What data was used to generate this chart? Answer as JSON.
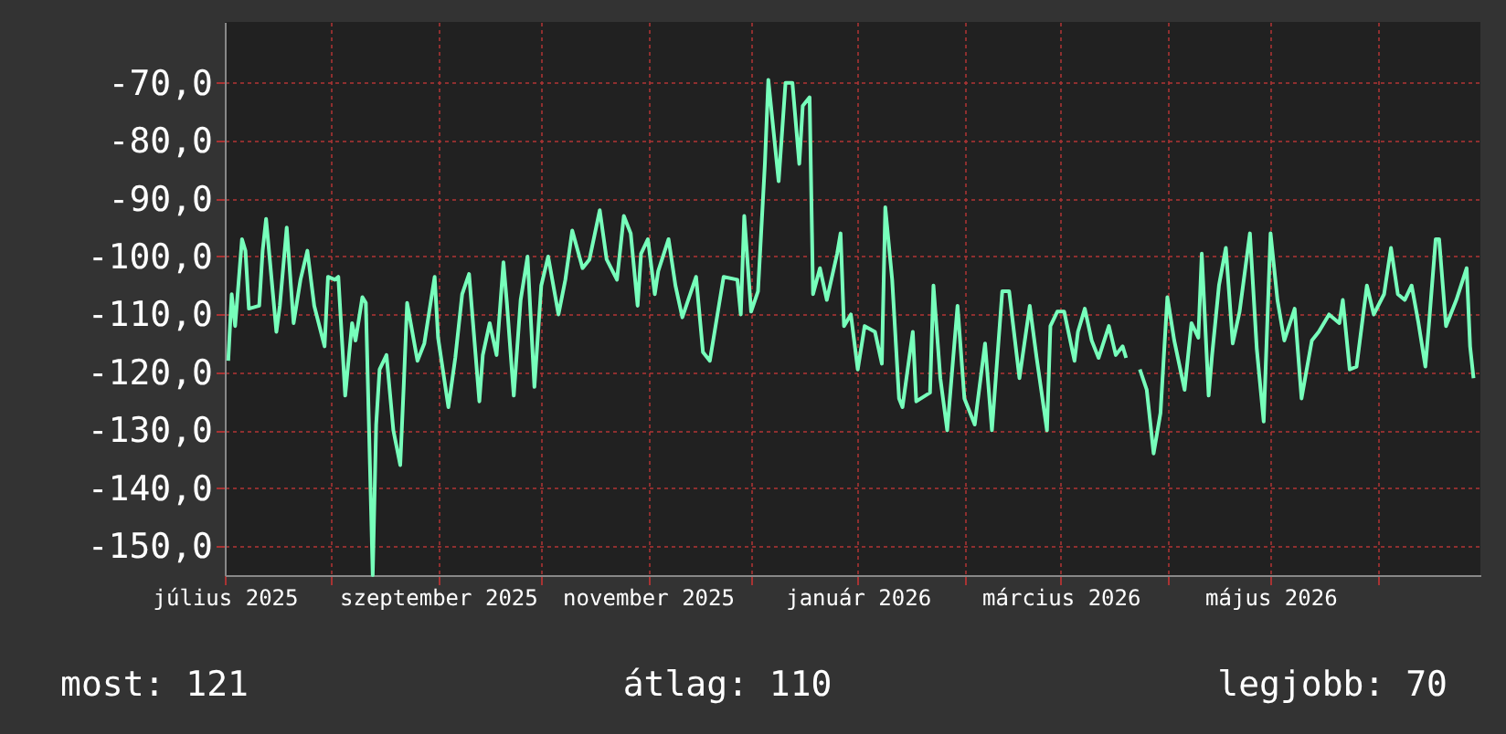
{
  "chart_data": {
    "type": "line",
    "x": [
      "2025-07-02",
      "2025-07-03",
      "2025-07-04",
      "2025-07-06",
      "2025-07-07",
      "2025-07-08",
      "2025-07-11",
      "2025-07-12",
      "2025-07-13",
      "2025-07-14",
      "2025-07-16",
      "2025-07-17",
      "2025-07-19",
      "2025-07-21",
      "2025-07-23",
      "2025-07-25",
      "2025-07-27",
      "2025-07-30",
      "2025-07-31",
      "2025-08-02",
      "2025-08-03",
      "2025-08-05",
      "2025-08-07",
      "2025-08-08",
      "2025-08-10",
      "2025-08-11",
      "2025-08-13",
      "2025-08-14",
      "2025-08-15",
      "2025-08-17",
      "2025-08-19",
      "2025-08-21",
      "2025-08-22",
      "2025-08-23",
      "2025-08-26",
      "2025-08-28",
      "2025-08-31",
      "2025-09-01",
      "2025-09-04",
      "2025-09-06",
      "2025-09-08",
      "2025-09-10",
      "2025-09-13",
      "2025-09-14",
      "2025-09-16",
      "2025-09-18",
      "2025-09-20",
      "2025-09-21",
      "2025-09-23",
      "2025-09-25",
      "2025-09-27",
      "2025-09-29",
      "2025-10-01",
      "2025-10-03",
      "2025-10-06",
      "2025-10-08",
      "2025-10-10",
      "2025-10-13",
      "2025-10-15",
      "2025-10-18",
      "2025-10-20",
      "2025-10-23",
      "2025-10-25",
      "2025-10-27",
      "2025-10-29",
      "2025-10-30",
      "2025-11-01",
      "2025-11-03",
      "2025-11-04",
      "2025-11-07",
      "2025-11-09",
      "2025-11-11",
      "2025-11-15",
      "2025-11-17",
      "2025-11-19",
      "2025-11-23",
      "2025-11-27",
      "2025-11-28",
      "2025-11-29",
      "2025-12-01",
      "2025-12-03",
      "2025-12-05",
      "2025-12-06",
      "2025-12-09",
      "2025-12-11",
      "2025-12-13",
      "2025-12-15",
      "2025-12-16",
      "2025-12-18",
      "2025-12-19",
      "2025-12-21",
      "2025-12-23",
      "2025-12-26",
      "2025-12-27",
      "2025-12-28",
      "2025-12-30",
      "2026-01-01",
      "2026-01-03",
      "2026-01-06",
      "2026-01-08",
      "2026-01-09",
      "2026-01-11",
      "2026-01-13",
      "2026-01-14",
      "2026-01-17",
      "2026-01-18",
      "2026-01-22",
      "2026-01-23",
      "2026-01-25",
      "2026-01-27",
      "2026-01-30",
      "2026-02-01",
      "2026-02-04",
      "2026-02-07",
      "2026-02-09",
      "2026-02-12",
      "2026-02-14",
      "2026-02-17",
      "2026-02-20",
      "2026-02-22",
      "2026-02-25",
      "2026-02-26",
      "2026-02-28",
      "2026-03-02",
      "2026-03-05",
      "2026-03-06",
      "2026-03-08",
      "2026-03-10",
      "2026-03-12",
      "2026-03-15",
      "2026-03-17",
      "2026-03-19",
      "2026-03-20",
      "2026-03-22",
      "2026-03-24",
      "2026-03-26",
      "2026-03-28",
      "2026-03-30",
      "2026-03-31",
      "2026-04-01",
      "2026-04-03",
      "2026-04-06",
      "2026-04-08",
      "2026-04-10",
      "2026-04-11",
      "2026-04-13",
      "2026-04-14",
      "2026-04-16",
      "2026-04-18",
      "2026-04-20",
      "2026-04-22",
      "2026-04-25",
      "2026-04-27",
      "2026-04-29",
      "2026-05-01",
      "2026-05-03",
      "2026-05-05",
      "2026-05-08",
      "2026-05-10",
      "2026-05-13",
      "2026-05-15",
      "2026-05-18",
      "2026-05-21",
      "2026-05-22",
      "2026-05-24",
      "2026-05-26",
      "2026-05-29",
      "2026-05-31",
      "2026-06-03",
      "2026-06-05",
      "2026-06-07",
      "2026-06-09",
      "2026-06-11",
      "2026-06-13",
      "2026-06-15",
      "2026-06-16",
      "2026-06-18",
      "2026-06-19",
      "2026-06-21",
      "2026-06-24",
      "2026-06-27",
      "2026-06-28",
      "2026-06-29"
    ],
    "series": [
      {
        "color": "#77ffbb",
        "values": [
          -118,
          -106.5,
          -112,
          -97,
          -99,
          -109,
          -108.5,
          -99,
          -93.5,
          -100,
          -113,
          -108.5,
          -95,
          -111.5,
          -104,
          -99,
          -108.5,
          -115.5,
          -103.5,
          -104,
          -103.5,
          -124,
          -111.5,
          -114.5,
          -107,
          -108,
          -155,
          -129,
          -119.5,
          -117,
          -130,
          -136,
          -122.5,
          -108,
          -118,
          -115,
          -103.5,
          -114,
          -126,
          -117.5,
          -106.5,
          -103,
          -125,
          -117,
          -111.5,
          -117,
          -101,
          -108,
          -124,
          -107.5,
          -100,
          -122.5,
          -105,
          -100,
          -110,
          -104,
          -95.5,
          -102,
          -100.5,
          -92,
          -100.5,
          -104,
          -93,
          -96,
          -108.5,
          -99.5,
          -97,
          -106.5,
          -102.5,
          -97,
          -105,
          -110.5,
          -103.5,
          -116.5,
          -118,
          -103.5,
          -104,
          -110,
          -93,
          -109.5,
          -106,
          -84,
          -69.5,
          -87,
          -70,
          -70,
          -84,
          -74,
          -72.5,
          -106.5,
          -102,
          -107.5,
          -99.5,
          -96,
          -112,
          -110,
          -119.5,
          -112,
          -113,
          -118.5,
          -91.5,
          -104,
          -124.5,
          -126,
          -113,
          -125,
          -123.5,
          -105,
          -121,
          -130,
          -108.5,
          -124.5,
          -129,
          -115,
          -130,
          -106,
          -106,
          -121,
          -108.5,
          -117.5,
          -130,
          -112,
          -109.5,
          -109.5,
          -118,
          -113,
          -109,
          -114.5,
          -117.5,
          -112,
          -117,
          -115.5,
          -117.5,
          null,
          -119.5,
          -123,
          -134,
          -127,
          -117,
          -107,
          -114.5,
          -123,
          -111.5,
          -114,
          -99.5,
          -124,
          -117,
          -105,
          -98.5,
          -115,
          -109.5,
          -96,
          -116,
          -128.5,
          -96,
          -107.5,
          -114.5,
          -109,
          -124.5,
          -114.5,
          -113,
          -110,
          -111.5,
          -107.5,
          -119.5,
          -119,
          -105,
          -110,
          -106.5,
          -98.5,
          -106.5,
          -107.5,
          -105,
          -111.5,
          -119,
          -112,
          -97,
          -97,
          -112,
          -107.5,
          -102,
          -115.5,
          -121
        ]
      }
    ],
    "xlim": [
      "2025-07-01",
      "2026-07-01"
    ],
    "xticks": [
      {
        "value": "2025-07-01",
        "label": "július 2025"
      },
      {
        "value": "2025-08-01",
        "label": null
      },
      {
        "value": "2025-09-01",
        "label": "szeptember 2025"
      },
      {
        "value": "2025-10-01",
        "label": null
      },
      {
        "value": "2025-11-01",
        "label": "november 2025"
      },
      {
        "value": "2025-12-01",
        "label": null
      },
      {
        "value": "2026-01-01",
        "label": "január 2026"
      },
      {
        "value": "2026-02-01",
        "label": null
      },
      {
        "value": "2026-03-01",
        "label": "március 2026"
      },
      {
        "value": "2026-04-01",
        "label": null
      },
      {
        "value": "2026-05-01",
        "label": "május 2026"
      },
      {
        "value": "2026-06-01",
        "label": null
      }
    ],
    "ylim": [
      -155,
      -59.5
    ],
    "yticks": [
      {
        "value": -70,
        "label": "-70,0"
      },
      {
        "value": -80,
        "label": "-80,0"
      },
      {
        "value": -90,
        "label": "-90,0"
      },
      {
        "value": -100,
        "label": "-100,0"
      },
      {
        "value": -110,
        "label": "-110,0"
      },
      {
        "value": -120,
        "label": "-120,0"
      },
      {
        "value": -130,
        "label": "-130,0"
      },
      {
        "value": -140,
        "label": "-140,0"
      },
      {
        "value": -150,
        "label": "-150,0"
      }
    ],
    "grid": true,
    "marker": "none",
    "line_style": "solid",
    "annotations": [
      "most: 121",
      "átlag: 110",
      "legjobb: 70"
    ]
  }
}
